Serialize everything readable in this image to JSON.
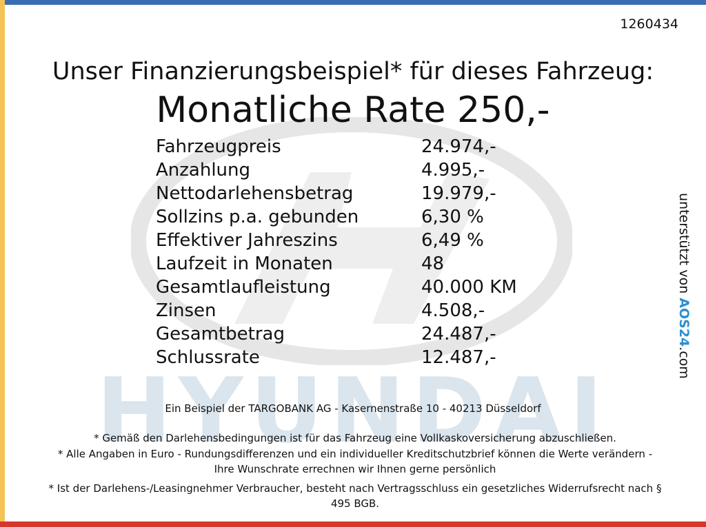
{
  "ad_id": "1260434",
  "heading": "Unser Finanzierungsbeispiel* für dieses Fahrzeug:",
  "rate": "Monatliche Rate 250,-",
  "rows": [
    [
      "Fahrzeugpreis",
      "24.974,-"
    ],
    [
      "Anzahlung",
      "4.995,-"
    ],
    [
      "Nettodarlehensbetrag",
      "19.979,-"
    ],
    [
      "Sollzins p.a. gebunden",
      "6,30 %"
    ],
    [
      "Effektiver Jahreszins",
      "6,49 %"
    ],
    [
      "Laufzeit in Monaten",
      "48"
    ],
    [
      "Gesamtlaufleistung",
      "40.000 KM"
    ],
    [
      "Zinsen",
      "4.508,-"
    ],
    [
      "Gesamtbetrag",
      "24.487,-"
    ],
    [
      "Schlussrate",
      "12.487,-"
    ]
  ],
  "watermark": "HYUNDAI",
  "bank_line": "Ein Beispiel der TARGOBANK AG - Kasernenstraße 10 - 40213 Düsseldorf",
  "footnotes": [
    "* Gemäß den Darlehensbedingungen ist für das Fahrzeug eine Vollkaskoversicherung abzuschließen.",
    "* Alle Angaben in Euro - Rundungsdifferenzen und ein individueller Kreditschutzbrief können die Werte verändern - Ihre Wunschrate errechnen wir Ihnen gerne persönlich",
    "* Ist der Darlehens-/Leasingnehmer Verbraucher, besteht nach Vertragsschluss ein gesetzliches Widerrufsrecht nach § 495 BGB."
  ],
  "side": {
    "prefix": "unterstützt von",
    "brand": "AOS24",
    "suffix": ".com"
  }
}
